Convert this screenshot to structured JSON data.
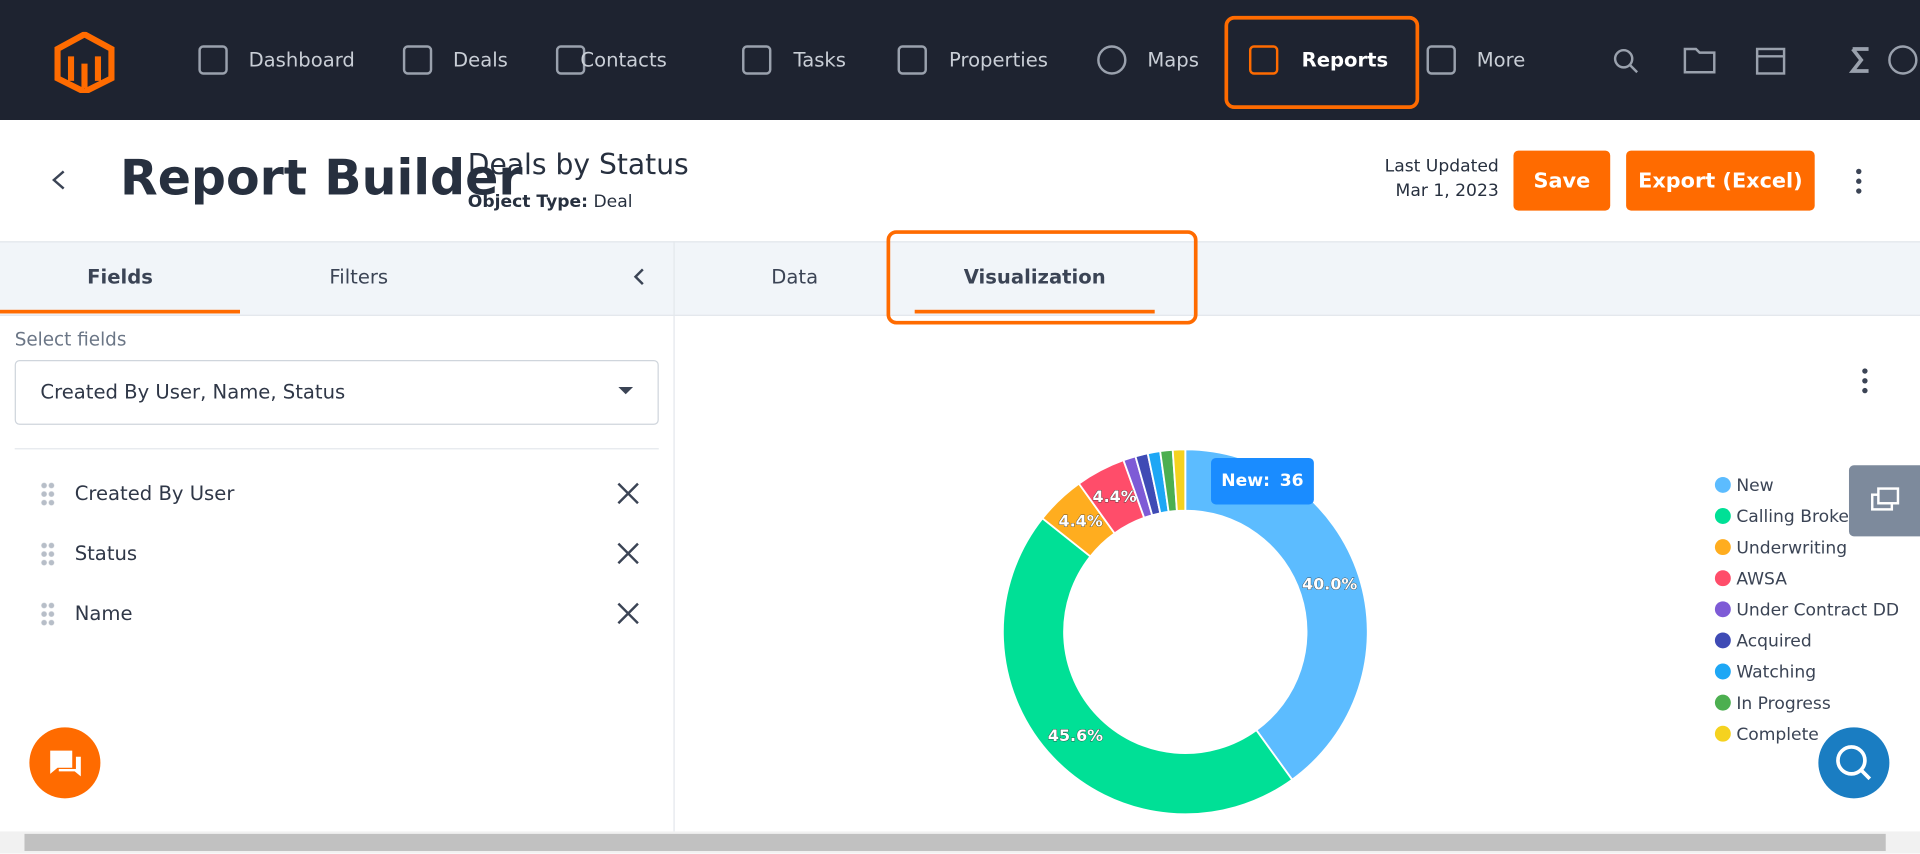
{
  "nav": {
    "items": [
      "Dashboard",
      "Deals",
      "Contacts",
      "Tasks",
      "Properties",
      "Maps",
      "Reports",
      "More"
    ]
  },
  "header": {
    "title": "Report Builder",
    "report_name": "Deals by Status",
    "object_type_label": "Object Type:",
    "object_type": "Deal",
    "last_updated_label": "Last Updated",
    "last_updated_date": "Mar 1, 2023",
    "save": "Save",
    "export": "Export (Excel)"
  },
  "left_tabs": [
    "Fields",
    "Filters"
  ],
  "right_tabs": [
    "Data",
    "Visualization"
  ],
  "select_label": "Select fields",
  "select_value": "Created By User, Name, Status",
  "fields": [
    "Created By User",
    "Status",
    "Name"
  ],
  "chart_data": {
    "type": "donut",
    "categories": [
      "New",
      "Calling Broker",
      "Underwriting",
      "AWSA",
      "Under Contract DD",
      "Acquired",
      "Watching",
      "In Progress",
      "Complete"
    ],
    "values": [
      40.0,
      45.6,
      4.4,
      4.4,
      1.1,
      1.1,
      1.1,
      1.1,
      1.1
    ],
    "value_labels": [
      "40.0%",
      "45.6%",
      "4.4%",
      "4.4%",
      null,
      null,
      null,
      null,
      null
    ],
    "colors": [
      "#5cbcff",
      "#00e096",
      "#ffad1f",
      "#ff4d6a",
      "#7e5bd6",
      "#3f4bb5",
      "#1ea7f5",
      "#4caf50",
      "#f5d21f"
    ],
    "tooltip": {
      "label": "New:",
      "value": 36
    }
  }
}
